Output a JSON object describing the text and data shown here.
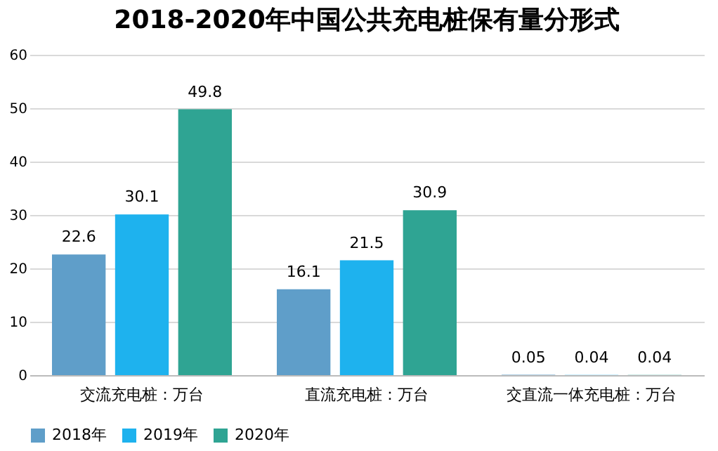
{
  "chart_data": {
    "type": "bar",
    "title": "2018-2020年中国公共充电桩保有量分形式",
    "categories": [
      "交流充电桩：万台",
      "直流充电桩：万台",
      "交直流一体充电桩：万台"
    ],
    "series": [
      {
        "name": "2018年",
        "color": "#5f9ec9",
        "values": [
          22.6,
          16.1,
          0.05
        ]
      },
      {
        "name": "2019年",
        "color": "#1eb2ee",
        "values": [
          30.1,
          21.5,
          0.04
        ]
      },
      {
        "name": "2020年",
        "color": "#2fa493",
        "values": [
          49.8,
          30.9,
          0.04
        ]
      }
    ],
    "ylim": [
      0,
      60
    ],
    "yticks": [
      0,
      10,
      20,
      30,
      40,
      50,
      60
    ],
    "grid": "y",
    "legend": "bottom",
    "data_labels": true
  }
}
